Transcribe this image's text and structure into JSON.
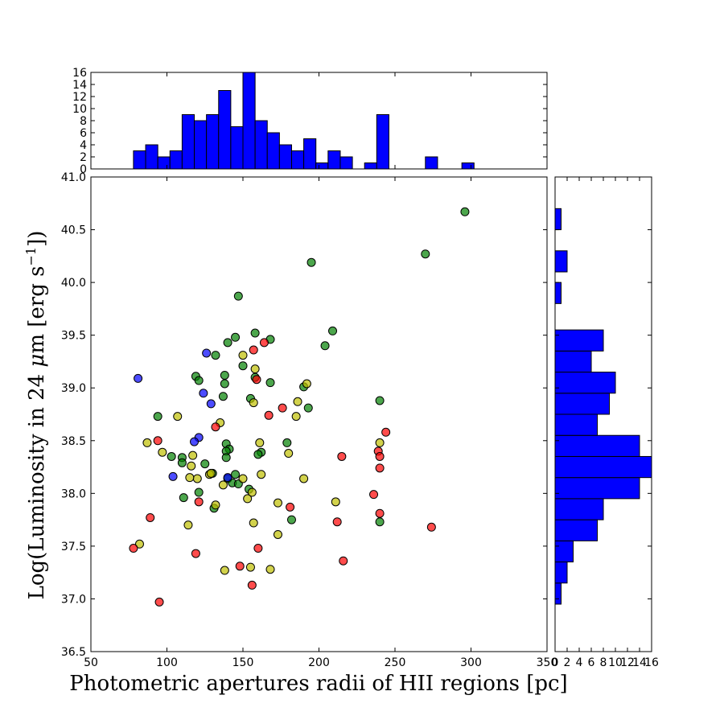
{
  "chart_data": [
    {
      "type": "scatter",
      "panel": "main",
      "xlabel": "Photometric apertures radii of HII regions [pc]",
      "ylabel_prefix": "Log(Luminosity in 24 ",
      "ylabel_mu": "μ",
      "ylabel_m": "m [erg s",
      "ylabel_exp": "−1",
      "ylabel_suffix": "])",
      "xlim": [
        50,
        350
      ],
      "ylim": [
        36.5,
        41.0
      ],
      "xticks": [
        "50",
        "100",
        "150",
        "200",
        "250",
        "300",
        "350"
      ],
      "yticks": [
        "36.5",
        "37.0",
        "37.5",
        "38.0",
        "38.5",
        "39.0",
        "39.5",
        "40.0",
        "40.5",
        "41.0"
      ],
      "grid": false,
      "marker_colors": {
        "green": "#008000",
        "yellow": "#bfbf00",
        "red": "#ff0000",
        "blue": "#0000ff"
      },
      "series": [
        {
          "color_key": "green",
          "points": [
            [
              296,
              40.67
            ],
            [
              270,
              40.27
            ],
            [
              195,
              40.19
            ],
            [
              147,
              39.87
            ],
            [
              209,
              39.54
            ],
            [
              158,
              39.52
            ],
            [
              145,
              39.48
            ],
            [
              168,
              39.46
            ],
            [
              140,
              39.43
            ],
            [
              204,
              39.4
            ],
            [
              132,
              39.31
            ],
            [
              150,
              39.21
            ],
            [
              158,
              39.1
            ],
            [
              168,
              39.05
            ],
            [
              119,
              39.11
            ],
            [
              121,
              39.07
            ],
            [
              138,
              39.12
            ],
            [
              138,
              39.04
            ],
            [
              155,
              38.9
            ],
            [
              137,
              38.92
            ],
            [
              190,
              39.01
            ],
            [
              193,
              38.81
            ],
            [
              240,
              38.88
            ],
            [
              94,
              38.73
            ],
            [
              179,
              38.48
            ],
            [
              139,
              38.47
            ],
            [
              141,
              38.42
            ],
            [
              139,
              38.4
            ],
            [
              162,
              38.39
            ],
            [
              160,
              38.37
            ],
            [
              139,
              38.34
            ],
            [
              110,
              38.34
            ],
            [
              103,
              38.35
            ],
            [
              110,
              38.29
            ],
            [
              125,
              38.28
            ],
            [
              130,
              38.19
            ],
            [
              145,
              38.18
            ],
            [
              140,
              38.14
            ],
            [
              143,
              38.1
            ],
            [
              147,
              38.09
            ],
            [
              154,
              38.04
            ],
            [
              121,
              38.01
            ],
            [
              111,
              37.96
            ],
            [
              131,
              37.86
            ],
            [
              182,
              37.75
            ],
            [
              240,
              37.73
            ]
          ]
        },
        {
          "color_key": "yellow",
          "points": [
            [
              150,
              39.31
            ],
            [
              158,
              39.18
            ],
            [
              157,
              38.86
            ],
            [
              192,
              39.04
            ],
            [
              186,
              38.87
            ],
            [
              185,
              38.73
            ],
            [
              107,
              38.73
            ],
            [
              135,
              38.67
            ],
            [
              240,
              38.48
            ],
            [
              161,
              38.48
            ],
            [
              87,
              38.48
            ],
            [
              97,
              38.39
            ],
            [
              180,
              38.38
            ],
            [
              117,
              38.36
            ],
            [
              116,
              38.26
            ],
            [
              128,
              38.18
            ],
            [
              129,
              38.19
            ],
            [
              120,
              38.14
            ],
            [
              115,
              38.15
            ],
            [
              150,
              38.14
            ],
            [
              162,
              38.18
            ],
            [
              190,
              38.14
            ],
            [
              137,
              38.08
            ],
            [
              156,
              38.01
            ],
            [
              153,
              37.95
            ],
            [
              173,
              37.91
            ],
            [
              211,
              37.92
            ],
            [
              132,
              37.89
            ],
            [
              157,
              37.72
            ],
            [
              114,
              37.7
            ],
            [
              173,
              37.61
            ],
            [
              82,
              37.52
            ],
            [
              138,
              37.27
            ],
            [
              168,
              37.28
            ],
            [
              155,
              37.3
            ]
          ]
        },
        {
          "color_key": "red",
          "points": [
            [
              157,
              39.36
            ],
            [
              164,
              39.43
            ],
            [
              159,
              39.08
            ],
            [
              176,
              38.81
            ],
            [
              167,
              38.74
            ],
            [
              132,
              38.63
            ],
            [
              244,
              38.58
            ],
            [
              94,
              38.5
            ],
            [
              239,
              38.4
            ],
            [
              215,
              38.35
            ],
            [
              240,
              38.35
            ],
            [
              240,
              38.24
            ],
            [
              236,
              37.99
            ],
            [
              181,
              37.87
            ],
            [
              121,
              37.92
            ],
            [
              240,
              37.81
            ],
            [
              89,
              37.77
            ],
            [
              212,
              37.73
            ],
            [
              274,
              37.68
            ],
            [
              160,
              37.48
            ],
            [
              78,
              37.48
            ],
            [
              119,
              37.43
            ],
            [
              148,
              37.31
            ],
            [
              216,
              37.36
            ],
            [
              156,
              37.13
            ],
            [
              95,
              36.97
            ]
          ]
        },
        {
          "color_key": "blue",
          "points": [
            [
              81,
              39.09
            ],
            [
              126,
              39.33
            ],
            [
              124,
              38.95
            ],
            [
              129,
              38.85
            ],
            [
              121,
              38.53
            ],
            [
              118,
              38.49
            ],
            [
              104,
              38.16
            ],
            [
              140,
              38.15
            ]
          ]
        }
      ]
    },
    {
      "type": "bar",
      "panel": "top-histogram",
      "orientation": "vertical",
      "bin_width": 8,
      "bin_start": 78,
      "counts": [
        3,
        4,
        2,
        3,
        9,
        8,
        9,
        13,
        7,
        16,
        8,
        6,
        4,
        3,
        5,
        1,
        3,
        2,
        0,
        1,
        9,
        0,
        0,
        0,
        2,
        0,
        0,
        1
      ],
      "ylim": [
        0,
        16
      ],
      "yticks": [
        "0",
        "2",
        "4",
        "6",
        "8",
        "10",
        "12",
        "14",
        "16"
      ],
      "color": "#0000ff"
    },
    {
      "type": "bar",
      "panel": "right-histogram",
      "orientation": "horizontal",
      "bins": [
        [
          36.95,
          37.15,
          1
        ],
        [
          37.15,
          37.35,
          2
        ],
        [
          37.35,
          37.55,
          3
        ],
        [
          37.55,
          37.75,
          7
        ],
        [
          37.75,
          37.95,
          8
        ],
        [
          37.95,
          38.15,
          14
        ],
        [
          38.15,
          38.35,
          16
        ],
        [
          38.35,
          38.55,
          14
        ],
        [
          38.55,
          38.75,
          7
        ],
        [
          38.75,
          38.95,
          9
        ],
        [
          38.95,
          39.15,
          10
        ],
        [
          39.15,
          39.35,
          6
        ],
        [
          39.35,
          39.55,
          8
        ],
        [
          39.8,
          40.0,
          1
        ],
        [
          40.1,
          40.3,
          2
        ],
        [
          40.5,
          40.7,
          1
        ]
      ],
      "xlim": [
        0,
        16
      ],
      "xticks": [
        "0",
        "2",
        "4",
        "6",
        "8",
        "10",
        "12",
        "14",
        "16"
      ],
      "color": "#0000ff"
    }
  ]
}
